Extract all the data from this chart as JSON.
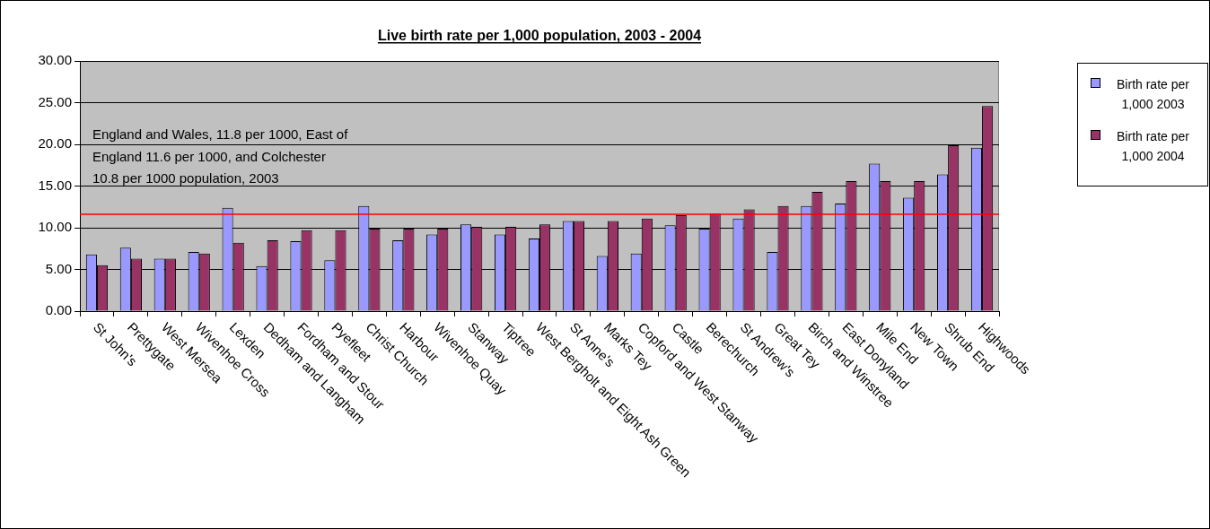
{
  "chart_data": {
    "type": "bar",
    "title": "Live birth rate per 1,000 population, 2003 - 2004",
    "categories": [
      "St John's",
      "Prettygate",
      "West Mersea",
      "Wivenhoe Cross",
      "Lexden",
      "Dedham and Langham",
      "Fordham and Stour",
      "Pyefleet",
      "Christ Church",
      "Harbour",
      "Wivenhoe Quay",
      "Stanway",
      "Tiptree",
      "West Bergholt and Eight Ash Green",
      "St Anne's",
      "Marks Tey",
      "Copford and West Stanway",
      "Castle",
      "Berechurch",
      "St Andrew's",
      "Great Tey",
      "Birch and Winstree",
      "East Donyland",
      "Mile End",
      "New Town",
      "Shrub End",
      "Highwoods"
    ],
    "series": [
      {
        "name": "Birth rate per 1,000 2003",
        "color": "#9999ff",
        "values": [
          6.8,
          7.6,
          6.3,
          7.1,
          12.4,
          5.4,
          8.4,
          6.1,
          12.6,
          8.5,
          9.2,
          10.4,
          9.2,
          8.7,
          10.8,
          6.6,
          6.9,
          10.3,
          9.9,
          11.1,
          7.1,
          12.6,
          12.9,
          17.7,
          13.6,
          16.4,
          19.6
        ]
      },
      {
        "name": "Birth rate per 1,000 2004",
        "color": "#993366",
        "values": [
          5.5,
          6.3,
          6.3,
          6.9,
          8.2,
          8.5,
          9.7,
          9.7,
          9.9,
          9.9,
          9.9,
          10.1,
          10.1,
          10.4,
          10.8,
          10.8,
          11.1,
          11.5,
          11.7,
          12.2,
          12.6,
          14.3,
          15.6,
          15.6,
          15.6,
          19.9,
          24.6
        ]
      }
    ],
    "ylim": [
      0,
      30
    ],
    "yticks": [
      {
        "value": 0,
        "label": "0.00"
      },
      {
        "value": 5,
        "label": "5.00"
      },
      {
        "value": 10,
        "label": "10.00"
      },
      {
        "value": 15,
        "label": "15.00"
      },
      {
        "value": 20,
        "label": "20.00"
      },
      {
        "value": 25,
        "label": "25.00"
      },
      {
        "value": 30,
        "label": "30.00"
      }
    ],
    "grid": "y",
    "legend": "right",
    "ref_lines": [
      {
        "axis": "y",
        "value": 11.6,
        "color": "#ff0000"
      }
    ],
    "annotations": [
      "England and Wales, 11.8 per 1000, East of England 11.6 per 1000, and Colchester 10.8 per 1000 population, 2003"
    ]
  }
}
